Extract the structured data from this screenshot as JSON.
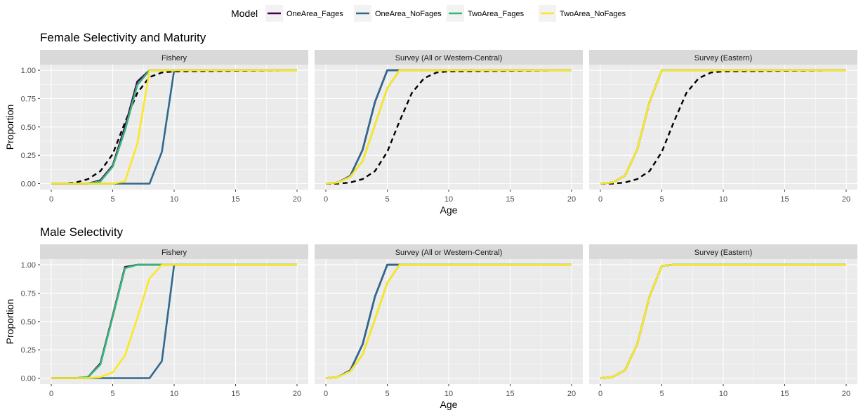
{
  "legend": {
    "title": "Model",
    "entries": [
      {
        "name": "OneArea_Fages",
        "color": "#440154"
      },
      {
        "name": "OneArea_NoFages",
        "color": "#31688E"
      },
      {
        "name": "TwoArea_Fages",
        "color": "#35B779"
      },
      {
        "name": "TwoArea_NoFages",
        "color": "#FDE725"
      }
    ],
    "placement": "top"
  },
  "colors": {
    "panel_bg": "#EBEBEB",
    "strip_bg": "#D9D9D9",
    "grid": "#FFFFFF",
    "maturity_line": "#000000"
  },
  "axes": {
    "xlabel": "Age",
    "ylabel": "Proportion",
    "xlim": [
      0,
      20
    ],
    "ylim": [
      0,
      1.05
    ],
    "xticks": [
      "0",
      "5",
      "10",
      "15",
      "20"
    ],
    "yticks": [
      "0.00",
      "0.25",
      "0.50",
      "0.75",
      "1.00"
    ]
  },
  "chart_data": [
    {
      "type": "line",
      "row_title": "Female Selectivity and Maturity",
      "panels": [
        {
          "strip": "Fishery",
          "maturity": {
            "x": [
              0,
              1,
              2,
              3,
              4,
              5,
              6,
              7,
              8,
              9,
              10,
              20
            ],
            "y": [
              0,
              0,
              0.01,
              0.04,
              0.11,
              0.26,
              0.54,
              0.8,
              0.94,
              0.98,
              0.99,
              1.0
            ]
          },
          "series": [
            {
              "name": "OneArea_Fages",
              "x": [
                0,
                1,
                2,
                3,
                4,
                5,
                6,
                7,
                8,
                9,
                10,
                20
              ],
              "y": [
                0,
                0,
                0,
                0,
                0.03,
                0.16,
                0.5,
                0.9,
                1.0,
                1.0,
                1.0,
                1.0
              ]
            },
            {
              "name": "OneArea_NoFages",
              "x": [
                0,
                1,
                2,
                3,
                4,
                5,
                6,
                7,
                8,
                9,
                10,
                20
              ],
              "y": [
                0,
                0,
                0,
                0,
                0,
                0,
                0,
                0,
                0,
                0.28,
                1.0,
                1.0
              ]
            },
            {
              "name": "TwoArea_Fages",
              "x": [
                0,
                1,
                2,
                3,
                4,
                5,
                6,
                7,
                8,
                9,
                10,
                20
              ],
              "y": [
                0,
                0,
                0,
                0,
                0.02,
                0.15,
                0.47,
                0.87,
                1.0,
                1.0,
                1.0,
                1.0
              ]
            },
            {
              "name": "TwoArea_NoFages",
              "x": [
                0,
                1,
                2,
                3,
                4,
                5,
                6,
                7,
                8,
                9,
                10,
                20
              ],
              "y": [
                0,
                0,
                0,
                0,
                0,
                0,
                0.02,
                0.35,
                1.0,
                1.0,
                1.0,
                1.0
              ]
            }
          ]
        },
        {
          "strip": "Survey (All or Western-Central)",
          "maturity": {
            "x": [
              0,
              1,
              2,
              3,
              4,
              5,
              6,
              7,
              8,
              9,
              10,
              20
            ],
            "y": [
              0,
              0,
              0.01,
              0.04,
              0.11,
              0.28,
              0.55,
              0.8,
              0.93,
              0.98,
              0.99,
              1.0
            ]
          },
          "series": [
            {
              "name": "OneArea_Fages",
              "x": [
                0,
                1,
                2,
                3,
                4,
                5,
                6,
                7,
                20
              ],
              "y": [
                0,
                0.01,
                0.07,
                0.3,
                0.72,
                1.0,
                1.0,
                1.0,
                1.0
              ]
            },
            {
              "name": "OneArea_NoFages",
              "x": [
                0,
                1,
                2,
                3,
                4,
                5,
                6,
                7,
                20
              ],
              "y": [
                0,
                0.01,
                0.07,
                0.3,
                0.72,
                1.0,
                1.0,
                1.0,
                1.0
              ]
            },
            {
              "name": "TwoArea_Fages",
              "x": [
                0,
                1,
                2,
                3,
                4,
                5,
                6,
                7,
                20
              ],
              "y": [
                0,
                0.01,
                0.06,
                0.2,
                0.52,
                0.84,
                1.0,
                1.0,
                1.0
              ]
            },
            {
              "name": "TwoArea_NoFages",
              "x": [
                0,
                1,
                2,
                3,
                4,
                5,
                6,
                7,
                20
              ],
              "y": [
                0,
                0.01,
                0.06,
                0.2,
                0.52,
                0.84,
                1.0,
                1.0,
                1.0
              ]
            }
          ]
        },
        {
          "strip": "Survey (Eastern)",
          "maturity": {
            "x": [
              0,
              1,
              2,
              3,
              4,
              5,
              6,
              7,
              8,
              9,
              10,
              20
            ],
            "y": [
              0,
              0,
              0.01,
              0.04,
              0.11,
              0.28,
              0.55,
              0.8,
              0.93,
              0.98,
              0.99,
              1.0
            ]
          },
          "series": [
            {
              "name": "OneArea_Fages",
              "x": [
                0,
                1,
                2,
                3,
                4,
                5,
                6,
                20
              ],
              "y": [
                0,
                0.01,
                0.07,
                0.3,
                0.72,
                1.0,
                1.0,
                1.0
              ]
            },
            {
              "name": "OneArea_NoFages",
              "x": [
                0,
                1,
                2,
                3,
                4,
                5,
                6,
                20
              ],
              "y": [
                0,
                0.01,
                0.07,
                0.3,
                0.72,
                1.0,
                1.0,
                1.0
              ]
            },
            {
              "name": "TwoArea_Fages",
              "x": [
                0,
                1,
                2,
                3,
                4,
                5,
                6,
                20
              ],
              "y": [
                0,
                0.01,
                0.07,
                0.3,
                0.72,
                1.0,
                1.0,
                1.0
              ]
            },
            {
              "name": "TwoArea_NoFages",
              "x": [
                0,
                1,
                2,
                3,
                4,
                5,
                6,
                20
              ],
              "y": [
                0,
                0.01,
                0.07,
                0.3,
                0.72,
                1.0,
                1.0,
                1.0
              ]
            }
          ]
        }
      ]
    },
    {
      "type": "line",
      "row_title": "Male Selectivity",
      "panels": [
        {
          "strip": "Fishery",
          "series": [
            {
              "name": "OneArea_Fages",
              "x": [
                0,
                1,
                2,
                3,
                4,
                5,
                6,
                7,
                8,
                20
              ],
              "y": [
                0,
                0,
                0,
                0.01,
                0.13,
                0.55,
                0.98,
                1.0,
                1.0,
                1.0
              ]
            },
            {
              "name": "OneArea_NoFages",
              "x": [
                0,
                1,
                2,
                3,
                4,
                5,
                6,
                7,
                8,
                9,
                10,
                20
              ],
              "y": [
                0,
                0,
                0,
                0,
                0,
                0,
                0,
                0,
                0,
                0.15,
                1.0,
                1.0
              ]
            },
            {
              "name": "TwoArea_Fages",
              "x": [
                0,
                1,
                2,
                3,
                4,
                5,
                6,
                7,
                8,
                20
              ],
              "y": [
                0,
                0,
                0,
                0.01,
                0.12,
                0.54,
                0.97,
                1.0,
                1.0,
                1.0
              ]
            },
            {
              "name": "TwoArea_NoFages",
              "x": [
                0,
                1,
                2,
                3,
                4,
                5,
                6,
                7,
                8,
                9,
                10,
                20
              ],
              "y": [
                0,
                0,
                0,
                0,
                0.01,
                0.05,
                0.2,
                0.53,
                0.88,
                1.0,
                1.0,
                1.0
              ]
            }
          ]
        },
        {
          "strip": "Survey (All or Western-Central)",
          "series": [
            {
              "name": "OneArea_Fages",
              "x": [
                0,
                1,
                2,
                3,
                4,
                5,
                6,
                7,
                20
              ],
              "y": [
                0,
                0.01,
                0.07,
                0.3,
                0.72,
                1.0,
                1.0,
                1.0,
                1.0
              ]
            },
            {
              "name": "OneArea_NoFages",
              "x": [
                0,
                1,
                2,
                3,
                4,
                5,
                6,
                7,
                20
              ],
              "y": [
                0,
                0.01,
                0.07,
                0.3,
                0.72,
                1.0,
                1.0,
                1.0,
                1.0
              ]
            },
            {
              "name": "TwoArea_Fages",
              "x": [
                0,
                1,
                2,
                3,
                4,
                5,
                6,
                7,
                20
              ],
              "y": [
                0,
                0.01,
                0.06,
                0.21,
                0.52,
                0.84,
                1.0,
                1.0,
                1.0
              ]
            },
            {
              "name": "TwoArea_NoFages",
              "x": [
                0,
                1,
                2,
                3,
                4,
                5,
                6,
                7,
                20
              ],
              "y": [
                0,
                0.01,
                0.06,
                0.21,
                0.52,
                0.84,
                1.0,
                1.0,
                1.0
              ]
            }
          ]
        },
        {
          "strip": "Survey (Eastern)",
          "series": [
            {
              "name": "OneArea_Fages",
              "x": [
                0,
                1,
                2,
                3,
                4,
                5,
                6,
                20
              ],
              "y": [
                0,
                0.01,
                0.07,
                0.3,
                0.72,
                0.99,
                1.0,
                1.0
              ]
            },
            {
              "name": "OneArea_NoFages",
              "x": [
                0,
                1,
                2,
                3,
                4,
                5,
                6,
                20
              ],
              "y": [
                0,
                0.01,
                0.07,
                0.3,
                0.72,
                0.99,
                1.0,
                1.0
              ]
            },
            {
              "name": "TwoArea_Fages",
              "x": [
                0,
                1,
                2,
                3,
                4,
                5,
                6,
                20
              ],
              "y": [
                0,
                0.01,
                0.07,
                0.3,
                0.72,
                0.99,
                1.0,
                1.0
              ]
            },
            {
              "name": "TwoArea_NoFages",
              "x": [
                0,
                1,
                2,
                3,
                4,
                5,
                6,
                20
              ],
              "y": [
                0,
                0.01,
                0.07,
                0.3,
                0.72,
                0.99,
                1.0,
                1.0
              ]
            }
          ]
        }
      ]
    }
  ]
}
